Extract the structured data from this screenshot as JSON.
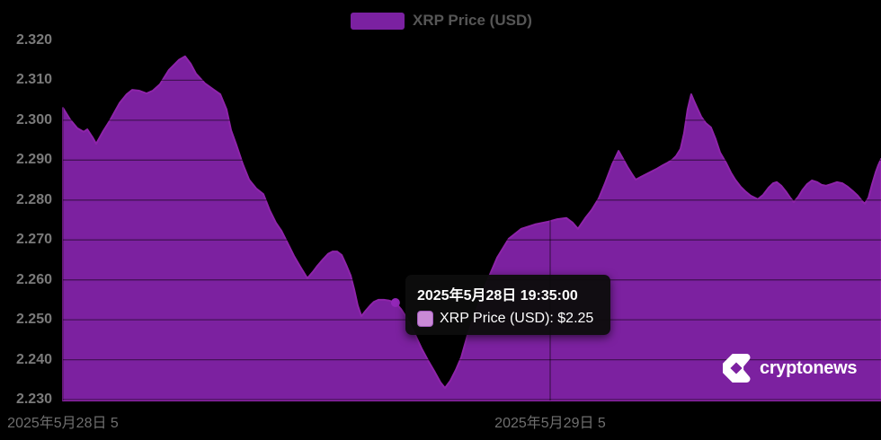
{
  "legend": {
    "label": "XRP Price (USD)"
  },
  "tooltip": {
    "title": "2025年5月28日 19:35:00",
    "series_text": "XRP Price (USD): $2.25",
    "swatch_color": "#c98ad6"
  },
  "watermark": {
    "text": "cryptonews"
  },
  "colors": {
    "background": "#000000",
    "area_fill": "#7c21a0",
    "line": "#8e24aa",
    "gridline": "rgba(0,0,0,0.45)",
    "marker": "#9327b8",
    "legend_swatch": "#7b21a1"
  },
  "chart_data": {
    "type": "area",
    "series_name": "XRP Price (USD)",
    "legend_position": "top-center",
    "grid": true,
    "y_axis": {
      "min": 2.23,
      "max": 2.32,
      "step": 0.01,
      "tick_labels": [
        "2.320",
        "2.310",
        "2.300",
        "2.290",
        "2.280",
        "2.270",
        "2.260",
        "2.250",
        "2.240",
        "2.230"
      ]
    },
    "x_axis": {
      "note": "h = hours since 2025-05-28 00:00, estimated from axis gridlines",
      "ticks": [
        {
          "label": "2025年5月28日 5",
          "h": 5
        },
        {
          "label": "2025年5月29日 5",
          "h": 29
        }
      ]
    },
    "marker_point": {
      "h": 21.38,
      "p": 2.2543,
      "time": "2025-05-28 19:35:00",
      "price_label": "$2.25"
    },
    "points": [
      [
        5.0,
        2.3031
      ],
      [
        5.35,
        2.3002
      ],
      [
        5.71,
        2.298
      ],
      [
        6.02,
        2.2971
      ],
      [
        6.2,
        2.2977
      ],
      [
        6.46,
        2.2957
      ],
      [
        6.64,
        2.2941
      ],
      [
        6.99,
        2.2973
      ],
      [
        7.3,
        2.2998
      ],
      [
        7.79,
        2.3043
      ],
      [
        8.14,
        2.3065
      ],
      [
        8.41,
        2.3076
      ],
      [
        8.76,
        2.3074
      ],
      [
        9.12,
        2.3067
      ],
      [
        9.43,
        2.3074
      ],
      [
        9.78,
        2.309
      ],
      [
        10.22,
        2.3126
      ],
      [
        10.71,
        2.3151
      ],
      [
        11.02,
        2.316
      ],
      [
        11.29,
        2.3142
      ],
      [
        11.55,
        2.3117
      ],
      [
        12.0,
        2.3092
      ],
      [
        12.44,
        2.3076
      ],
      [
        12.75,
        2.3065
      ],
      [
        13.06,
        2.3027
      ],
      [
        13.28,
        2.2975
      ],
      [
        13.55,
        2.2937
      ],
      [
        13.86,
        2.289
      ],
      [
        14.17,
        2.2851
      ],
      [
        14.52,
        2.2829
      ],
      [
        14.87,
        2.2815
      ],
      [
        15.18,
        2.2775
      ],
      [
        15.49,
        2.2743
      ],
      [
        15.76,
        2.2723
      ],
      [
        16.07,
        2.2692
      ],
      [
        16.38,
        2.266
      ],
      [
        16.69,
        2.2633
      ],
      [
        17.04,
        2.2604
      ],
      [
        17.31,
        2.262
      ],
      [
        17.53,
        2.2635
      ],
      [
        17.8,
        2.2651
      ],
      [
        18.06,
        2.2665
      ],
      [
        18.28,
        2.2671
      ],
      [
        18.5,
        2.2671
      ],
      [
        18.73,
        2.2662
      ],
      [
        18.95,
        2.2638
      ],
      [
        19.17,
        2.2611
      ],
      [
        19.35,
        2.2575
      ],
      [
        19.52,
        2.2536
      ],
      [
        19.7,
        2.2509
      ],
      [
        19.92,
        2.2523
      ],
      [
        20.14,
        2.2536
      ],
      [
        20.32,
        2.2545
      ],
      [
        20.54,
        2.255
      ],
      [
        20.81,
        2.255
      ],
      [
        21.07,
        2.2548
      ],
      [
        21.38,
        2.2543
      ],
      [
        21.65,
        2.2527
      ],
      [
        21.96,
        2.2503
      ],
      [
        22.31,
        2.2467
      ],
      [
        22.67,
        2.2428
      ],
      [
        23.02,
        2.2395
      ],
      [
        23.33,
        2.2368
      ],
      [
        23.6,
        2.2343
      ],
      [
        23.82,
        2.2329
      ],
      [
        24.08,
        2.2347
      ],
      [
        24.35,
        2.2374
      ],
      [
        24.62,
        2.2406
      ],
      [
        24.93,
        2.2462
      ],
      [
        25.37,
        2.2525
      ],
      [
        25.86,
        2.2593
      ],
      [
        26.39,
        2.2656
      ],
      [
        26.96,
        2.2703
      ],
      [
        27.58,
        2.2728
      ],
      [
        28.25,
        2.2739
      ],
      [
        28.91,
        2.2746
      ],
      [
        29.35,
        2.2752
      ],
      [
        29.8,
        2.2755
      ],
      [
        30.11,
        2.2743
      ],
      [
        30.37,
        2.2728
      ],
      [
        30.73,
        2.2755
      ],
      [
        31.04,
        2.2775
      ],
      [
        31.39,
        2.2804
      ],
      [
        31.7,
        2.2842
      ],
      [
        32.06,
        2.289
      ],
      [
        32.37,
        2.2923
      ],
      [
        32.59,
        2.2903
      ],
      [
        32.81,
        2.2883
      ],
      [
        33.03,
        2.2865
      ],
      [
        33.21,
        2.2851
      ],
      [
        33.47,
        2.2858
      ],
      [
        33.74,
        2.2865
      ],
      [
        34.01,
        2.2872
      ],
      [
        34.27,
        2.2879
      ],
      [
        34.54,
        2.2887
      ],
      [
        34.8,
        2.2894
      ],
      [
        35.02,
        2.2901
      ],
      [
        35.2,
        2.291
      ],
      [
        35.42,
        2.2928
      ],
      [
        35.6,
        2.2968
      ],
      [
        35.77,
        2.3027
      ],
      [
        35.95,
        2.3065
      ],
      [
        36.08,
        2.3049
      ],
      [
        36.26,
        2.3029
      ],
      [
        36.44,
        2.3009
      ],
      [
        36.66,
        2.2993
      ],
      [
        36.92,
        2.2982
      ],
      [
        37.15,
        2.2953
      ],
      [
        37.37,
        2.2919
      ],
      [
        37.68,
        2.2892
      ],
      [
        37.9,
        2.2869
      ],
      [
        38.12,
        2.2851
      ],
      [
        38.39,
        2.2833
      ],
      [
        38.61,
        2.2822
      ],
      [
        38.87,
        2.2811
      ],
      [
        39.23,
        2.2802
      ],
      [
        39.49,
        2.2813
      ],
      [
        39.76,
        2.2831
      ],
      [
        39.98,
        2.2842
      ],
      [
        40.16,
        2.2845
      ],
      [
        40.38,
        2.2836
      ],
      [
        40.6,
        2.2822
      ],
      [
        40.82,
        2.2806
      ],
      [
        41.0,
        2.2795
      ],
      [
        41.22,
        2.2808
      ],
      [
        41.44,
        2.2826
      ],
      [
        41.66,
        2.284
      ],
      [
        41.89,
        2.2849
      ],
      [
        42.15,
        2.2845
      ],
      [
        42.37,
        2.2838
      ],
      [
        42.59,
        2.2836
      ],
      [
        42.86,
        2.284
      ],
      [
        43.13,
        2.2845
      ],
      [
        43.39,
        2.2842
      ],
      [
        43.66,
        2.2833
      ],
      [
        43.92,
        2.2822
      ],
      [
        44.15,
        2.2811
      ],
      [
        44.37,
        2.2797
      ],
      [
        44.5,
        2.2791
      ],
      [
        44.68,
        2.2806
      ],
      [
        44.85,
        2.2838
      ],
      [
        45.03,
        2.2869
      ],
      [
        45.16,
        2.2887
      ],
      [
        45.3,
        2.2903
      ]
    ]
  }
}
